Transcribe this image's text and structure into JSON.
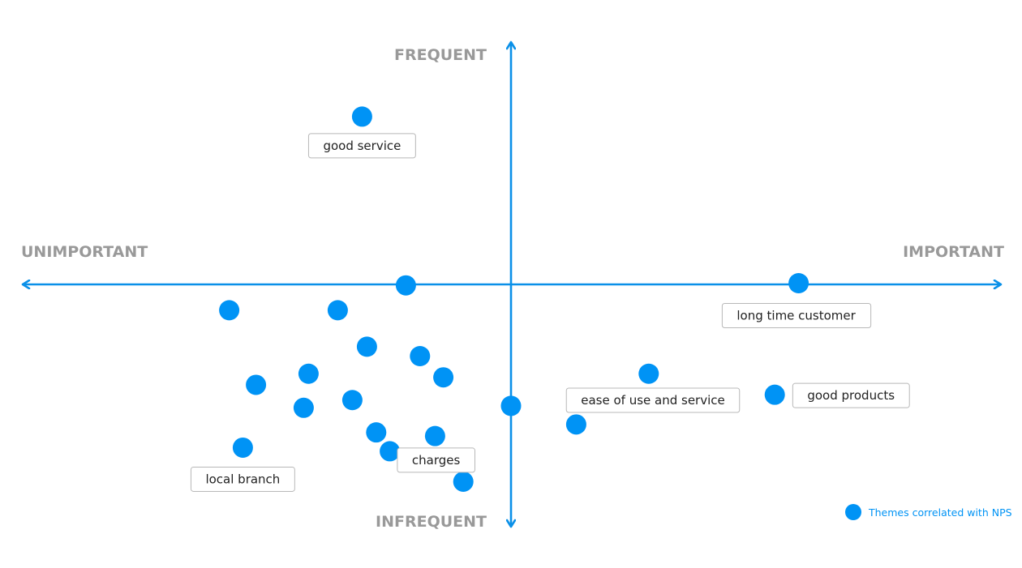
{
  "chart_data": {
    "type": "scatter",
    "title": "",
    "xlabel": "",
    "ylabel": "",
    "xlim": [
      -10,
      10
    ],
    "ylim": [
      -10,
      10
    ],
    "grid": false,
    "quadrant_labels": {
      "top": "FREQUENT",
      "bottom": "INFREQUENT",
      "left": "UNIMPORTANT",
      "right": "IMPORTANT"
    },
    "legend": {
      "position": "bottom-right",
      "entries": [
        "Themes correlated with NPS"
      ]
    },
    "series": [
      {
        "name": "Themes correlated with NPS",
        "color": "#0093f5",
        "points": [
          {
            "x": -3.06,
            "y": 6.95,
            "label": "good service"
          },
          {
            "x": -2.16,
            "y": -0.04
          },
          {
            "x": 5.91,
            "y": 0.05,
            "label": "long time customer"
          },
          {
            "x": -5.79,
            "y": -1.07
          },
          {
            "x": -3.56,
            "y": -1.07
          },
          {
            "x": -2.96,
            "y": -2.58
          },
          {
            "x": -1.87,
            "y": -2.97
          },
          {
            "x": -4.16,
            "y": -3.7
          },
          {
            "x": -5.24,
            "y": -4.16
          },
          {
            "x": -1.39,
            "y": -3.85
          },
          {
            "x": -4.26,
            "y": -5.11
          },
          {
            "x": -3.26,
            "y": -4.79
          },
          {
            "x": 0.0,
            "y": -5.03
          },
          {
            "x": -2.77,
            "y": -6.13
          },
          {
            "x": -1.56,
            "y": -6.28
          },
          {
            "x": -5.51,
            "y": -6.76,
            "label": "local branch"
          },
          {
            "x": -2.49,
            "y": -6.91,
            "label": "charges"
          },
          {
            "x": -0.98,
            "y": -8.17
          },
          {
            "x": 2.83,
            "y": -3.7
          },
          {
            "x": 1.34,
            "y": -5.8
          },
          {
            "x": 5.42,
            "y": -4.57,
            "label": "good products"
          },
          {
            "x": 3.2,
            "y": -4.9,
            "label": "ease of use and service"
          }
        ]
      }
    ]
  }
}
